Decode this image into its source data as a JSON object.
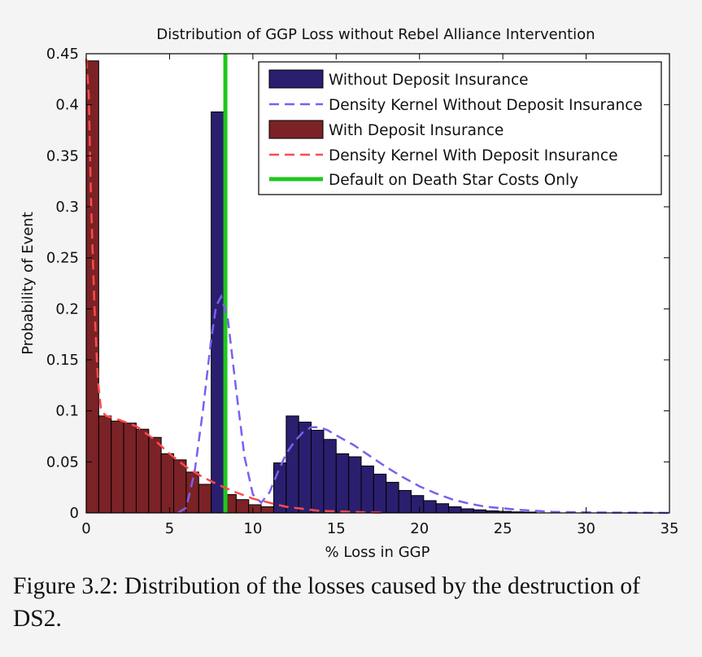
{
  "chart_data": {
    "type": "bar",
    "title": "Distribution of GGP Loss without Rebel Alliance Intervention",
    "xlabel": "% Loss in GGP",
    "ylabel": "Probability of Event",
    "xlim": [
      0,
      35
    ],
    "ylim": [
      0,
      0.45
    ],
    "x_ticks": [
      0,
      5,
      10,
      15,
      20,
      25,
      30,
      35
    ],
    "y_ticks": [
      0,
      0.05,
      0.1,
      0.15,
      0.2,
      0.25,
      0.3,
      0.35,
      0.4,
      0.45
    ],
    "y_tick_labels": [
      "0",
      "0.05",
      "0.1",
      "0.15",
      "0.2",
      "0.25",
      "0.3",
      "0.35",
      "0.4",
      "0.45"
    ],
    "bin_width": 0.75,
    "series": [
      {
        "name": "Without Deposit Insurance",
        "kind": "histogram",
        "color": "#2a1f6e",
        "bins_start": [
          7.5,
          11.25,
          12.0,
          12.75,
          13.5,
          14.25,
          15.0,
          15.75,
          16.5,
          17.25,
          18.0,
          18.75,
          19.5,
          20.25,
          21.0,
          21.75,
          22.5,
          23.25,
          24.0,
          24.75,
          25.5,
          26.25
        ],
        "values": [
          0.393,
          0.049,
          0.095,
          0.089,
          0.081,
          0.072,
          0.058,
          0.055,
          0.046,
          0.038,
          0.03,
          0.022,
          0.017,
          0.012,
          0.009,
          0.006,
          0.004,
          0.003,
          0.002,
          0.0015,
          0.001,
          0.0008
        ]
      },
      {
        "name": "Density Kernel Without Deposit Insurance",
        "kind": "line",
        "dashed": true,
        "color": "#7b5ff0",
        "x": [
          5.5,
          6.0,
          6.5,
          7.0,
          7.5,
          7.8,
          8.1,
          8.5,
          9.0,
          9.5,
          10.0,
          10.5,
          11.0,
          11.5,
          12.0,
          12.5,
          13.0,
          13.5,
          14.0,
          14.5,
          15.0,
          16.0,
          17.0,
          18.0,
          19.0,
          20.0,
          21.0,
          22.0,
          23.0,
          24.0,
          26.0,
          28.0,
          30.0,
          35.0
        ],
        "y": [
          0.0,
          0.005,
          0.04,
          0.1,
          0.17,
          0.203,
          0.212,
          0.19,
          0.12,
          0.055,
          0.018,
          0.01,
          0.02,
          0.04,
          0.058,
          0.07,
          0.079,
          0.084,
          0.084,
          0.081,
          0.076,
          0.067,
          0.056,
          0.045,
          0.035,
          0.026,
          0.019,
          0.013,
          0.009,
          0.006,
          0.003,
          0.001,
          0.0005,
          0.0
        ]
      },
      {
        "name": "With Deposit Insurance",
        "kind": "histogram",
        "color": "#7b2226",
        "bins_start": [
          0,
          0.75,
          1.5,
          2.25,
          3.0,
          3.75,
          4.5,
          5.25,
          6.0,
          6.75,
          7.5,
          8.25,
          9.0,
          9.75,
          10.5,
          11.25,
          12.0
        ],
        "values": [
          0.443,
          0.095,
          0.09,
          0.088,
          0.082,
          0.074,
          0.058,
          0.052,
          0.04,
          0.028,
          0.022,
          0.018,
          0.013,
          0.008,
          0.006,
          0.004,
          0.002
        ]
      },
      {
        "name": "Density Kernel With Deposit Insurance",
        "kind": "line",
        "dashed": true,
        "color": "#ff4a4a",
        "x": [
          0.0,
          0.15,
          0.3,
          0.5,
          0.7,
          0.9,
          1.2,
          2.0,
          3.0,
          4.0,
          5.0,
          6.0,
          7.0,
          8.0,
          9.0,
          10.0,
          11.0,
          12.0,
          13.0,
          14.0,
          16.0,
          18.0
        ],
        "y": [
          0.445,
          0.41,
          0.3,
          0.2,
          0.13,
          0.1,
          0.095,
          0.091,
          0.085,
          0.073,
          0.058,
          0.045,
          0.035,
          0.027,
          0.02,
          0.014,
          0.01,
          0.006,
          0.004,
          0.002,
          0.001,
          0.0
        ]
      },
      {
        "name": "Default on Death Star Costs Only",
        "kind": "vline",
        "color": "#1ec81e",
        "x": 8.35
      }
    ],
    "legend_position": "top-right",
    "grid": false
  },
  "caption": "Figure 3.2:  Distribution of the losses caused by the destruction of DS2."
}
